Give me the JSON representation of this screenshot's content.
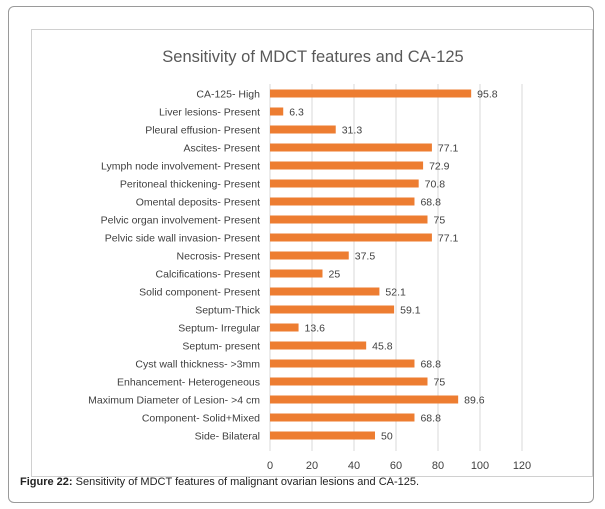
{
  "caption": {
    "label": "Figure 22:",
    "text": " Sensitivity of MDCT features of malignant ovarian lesions and CA-125."
  },
  "chart_data": {
    "type": "bar",
    "orientation": "horizontal",
    "title": "Sensitivity of MDCT features and CA-125",
    "categories": [
      "CA-125- High",
      "Liver lesions- Present",
      "Pleural effusion- Present",
      "Ascites- Present",
      "Lymph node involvement- Present",
      "Peritoneal thickening- Present",
      "Omental deposits- Present",
      "Pelvic organ involvement- Present",
      "Pelvic side wall invasion- Present",
      "Necrosis- Present",
      "Calcifications- Present",
      "Solid component- Present",
      "Septum-Thick",
      "Septum- Irregular",
      "Septum- present",
      "Cyst wall thickness- >3mm",
      "Enhancement- Heterogeneous",
      "Maximum Diameter of Lesion- >4 cm",
      "Component- Solid+Mixed",
      "Side- Bilateral"
    ],
    "values": [
      95.8,
      6.3,
      31.3,
      77.1,
      72.9,
      70.8,
      68.8,
      75,
      77.1,
      37.5,
      25,
      52.1,
      59.1,
      13.6,
      45.8,
      68.8,
      75,
      89.6,
      68.8,
      50
    ],
    "xlim": [
      0,
      120
    ],
    "xticks": [
      0,
      20,
      40,
      60,
      80,
      100,
      120
    ],
    "grid": true,
    "bar_color": "#ed7d31",
    "grid_color": "#d9d9d9",
    "text_color": "#404040"
  }
}
